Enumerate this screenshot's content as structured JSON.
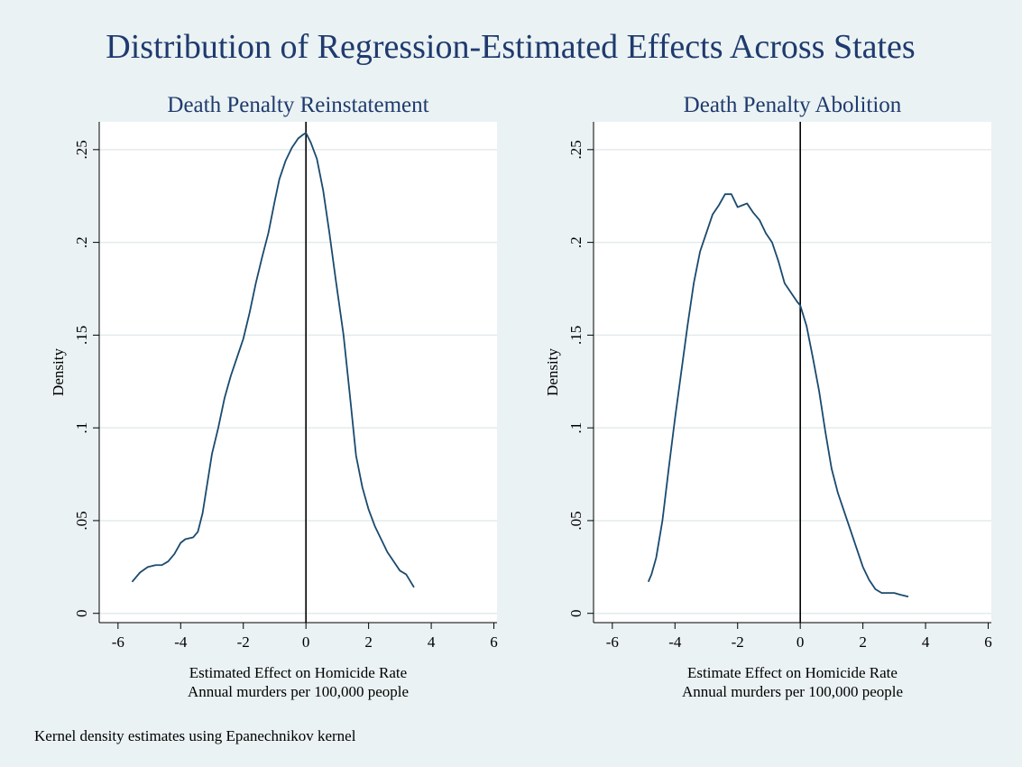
{
  "title": "Distribution of Regression-Estimated Effects Across States",
  "note": "Kernel density estimates using Epanechnikov kernel",
  "colors": {
    "background": "#eaf2f3",
    "title": "#1f3a6e",
    "line": "#1a4a6e",
    "grid": "#e3ebec",
    "reference": "#000000",
    "plot_bg": "#ffffff"
  },
  "chart_data": [
    {
      "type": "line",
      "title": "Death Penalty Reinstatement",
      "xlabel": "Estimated Effect on Homicide Rate",
      "xsublabel": "Annual murders per 100,000 people",
      "ylabel": "Density",
      "xlim": [
        -6.6,
        6.1
      ],
      "ylim": [
        -0.005,
        0.265
      ],
      "xticks": [
        -6,
        -4,
        -2,
        0,
        2,
        4,
        6
      ],
      "xtick_labels": [
        "-6",
        "-4",
        "-2",
        "0",
        "2",
        "4",
        "6"
      ],
      "yticks": [
        0,
        0.05,
        0.1,
        0.15,
        0.2,
        0.25
      ],
      "ytick_labels": [
        "0",
        ".05",
        ".1",
        ".15",
        ".2",
        ".25"
      ],
      "grid": true,
      "reference_line_x": 0,
      "series": [
        {
          "x": [
            -5.55,
            -5.3,
            -5.05,
            -4.8,
            -4.6,
            -4.4,
            -4.2,
            -4.0,
            -3.85,
            -3.6,
            -3.45,
            -3.3,
            -3.15,
            -3.0,
            -2.8,
            -2.6,
            -2.4,
            -2.2,
            -2.0,
            -1.8,
            -1.6,
            -1.4,
            -1.2,
            -1.0,
            -0.85,
            -0.65,
            -0.45,
            -0.25,
            -0.1,
            0.0,
            0.15,
            0.35,
            0.55,
            0.75,
            0.95,
            1.2,
            1.4,
            1.6,
            1.8,
            2.0,
            2.2,
            2.4,
            2.6,
            2.8,
            3.0,
            3.2,
            3.45
          ],
          "y": [
            0.017,
            0.022,
            0.025,
            0.026,
            0.026,
            0.028,
            0.032,
            0.038,
            0.04,
            0.041,
            0.044,
            0.054,
            0.07,
            0.086,
            0.1,
            0.116,
            0.128,
            0.138,
            0.148,
            0.162,
            0.178,
            0.192,
            0.205,
            0.222,
            0.234,
            0.244,
            0.251,
            0.256,
            0.258,
            0.259,
            0.254,
            0.245,
            0.228,
            0.205,
            0.18,
            0.15,
            0.118,
            0.085,
            0.068,
            0.056,
            0.047,
            0.04,
            0.033,
            0.028,
            0.023,
            0.021,
            0.014
          ]
        }
      ]
    },
    {
      "type": "line",
      "title": "Death Penalty Abolition",
      "xlabel": "Estimate Effect on Homicide Rate",
      "xsublabel": "Annual murders per 100,000 people",
      "ylabel": "Density",
      "xlim": [
        -6.6,
        6.1
      ],
      "ylim": [
        -0.005,
        0.265
      ],
      "xticks": [
        -6,
        -4,
        -2,
        0,
        2,
        4,
        6
      ],
      "xtick_labels": [
        "-6",
        "-4",
        "-2",
        "0",
        "2",
        "4",
        "6"
      ],
      "yticks": [
        0,
        0.05,
        0.1,
        0.15,
        0.2,
        0.25
      ],
      "ytick_labels": [
        "0",
        ".05",
        ".1",
        ".15",
        ".2",
        ".25"
      ],
      "grid": true,
      "reference_line_x": 0,
      "series": [
        {
          "x": [
            -4.85,
            -4.75,
            -4.6,
            -4.4,
            -4.2,
            -4.0,
            -3.8,
            -3.6,
            -3.4,
            -3.2,
            -3.0,
            -2.8,
            -2.6,
            -2.4,
            -2.2,
            -2.0,
            -1.85,
            -1.7,
            -1.5,
            -1.3,
            -1.1,
            -0.9,
            -0.7,
            -0.5,
            -0.3,
            -0.1,
            0.0,
            0.2,
            0.4,
            0.6,
            0.8,
            1.0,
            1.2,
            1.4,
            1.6,
            1.8,
            2.0,
            2.2,
            2.4,
            2.6,
            2.8,
            3.0,
            3.2,
            3.45
          ],
          "y": [
            0.017,
            0.021,
            0.03,
            0.05,
            0.078,
            0.105,
            0.13,
            0.155,
            0.178,
            0.195,
            0.205,
            0.215,
            0.22,
            0.226,
            0.226,
            0.219,
            0.22,
            0.221,
            0.216,
            0.212,
            0.205,
            0.2,
            0.19,
            0.178,
            0.173,
            0.168,
            0.166,
            0.155,
            0.138,
            0.12,
            0.098,
            0.078,
            0.065,
            0.055,
            0.045,
            0.035,
            0.025,
            0.018,
            0.013,
            0.011,
            0.011,
            0.011,
            0.01,
            0.009
          ]
        }
      ]
    }
  ]
}
